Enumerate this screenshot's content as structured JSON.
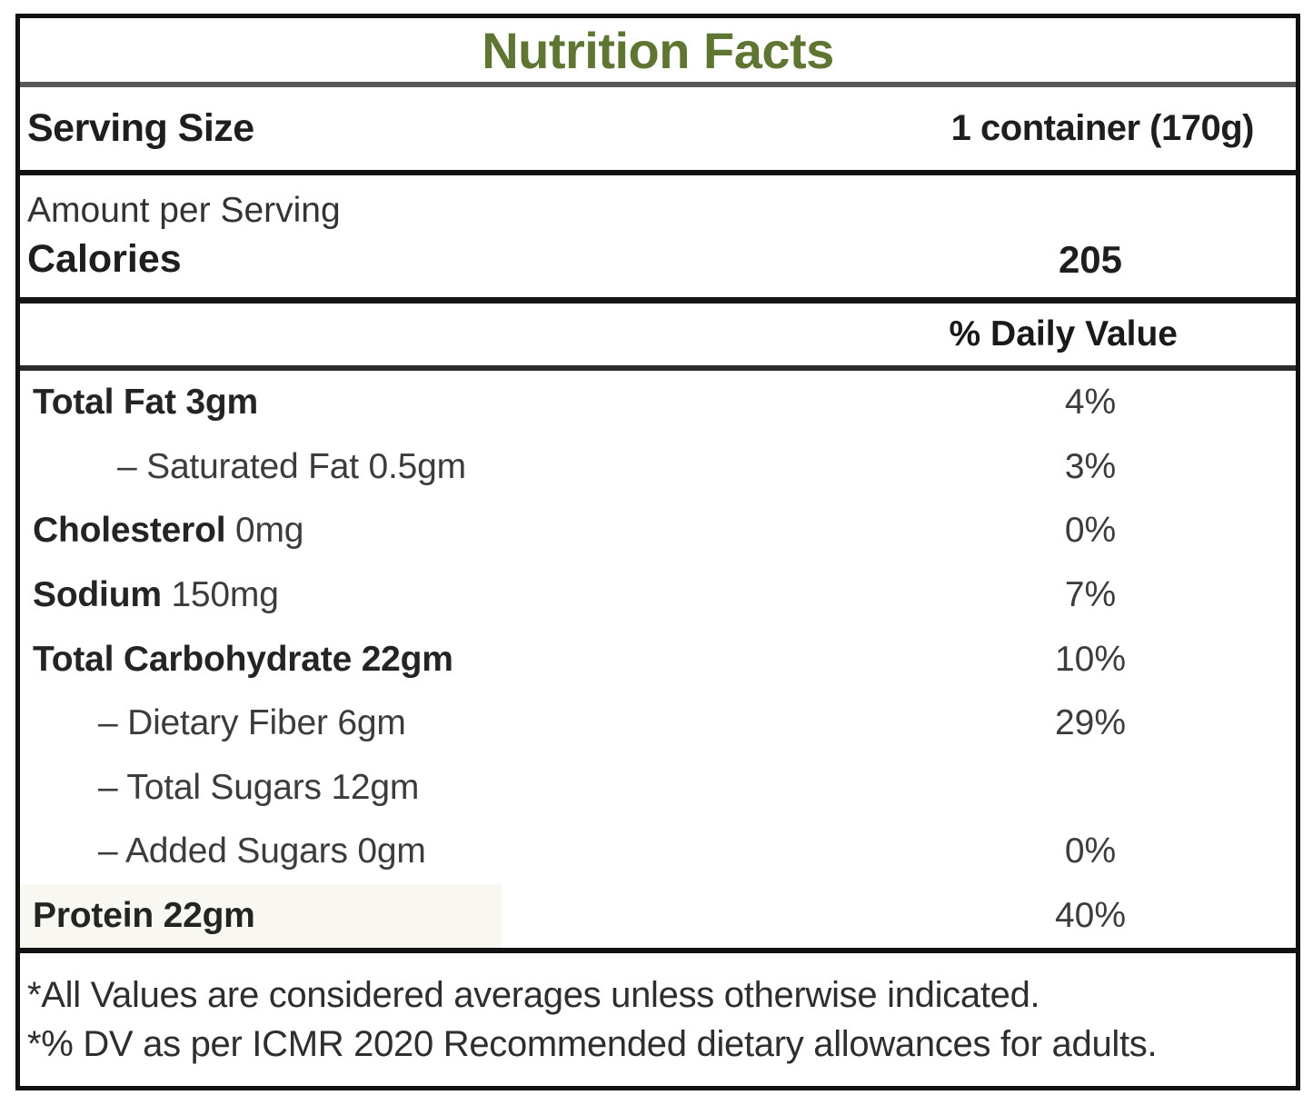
{
  "colors": {
    "title_green": "#5f7532",
    "border_black": "#111111",
    "divider_gray": "#585858"
  },
  "title": "Nutrition Facts",
  "serving": {
    "label": "Serving Size",
    "value": "1 container (170g)"
  },
  "calories": {
    "heading": "Amount per Serving",
    "label": "Calories",
    "value": "205"
  },
  "daily_value_header": "% Daily Value",
  "rows": [
    {
      "bold": "Total Fat 3gm",
      "light": "",
      "dv": "4%",
      "indent": 14,
      "highlight": false
    },
    {
      "bold": "",
      "light": "– Saturated Fat 0.5gm",
      "dv": "3%",
      "indent": 107,
      "highlight": false
    },
    {
      "bold": "Cholesterol",
      "light": "0mg",
      "dv": "0%",
      "indent": 14,
      "highlight": false
    },
    {
      "bold": "Sodium",
      "light": "150mg",
      "dv": "7%",
      "indent": 14,
      "highlight": false
    },
    {
      "bold": "Total Carbohydrate 22gm",
      "light": "",
      "dv": "10%",
      "indent": 14,
      "highlight": false
    },
    {
      "bold": "",
      "light": "– Dietary Fiber 6gm",
      "dv": "29%",
      "indent": 86,
      "highlight": false
    },
    {
      "bold": "",
      "light": "– Total Sugars 12gm",
      "dv": "",
      "indent": 86,
      "highlight": false
    },
    {
      "bold": "",
      "light": "– Added Sugars 0gm",
      "dv": "0%",
      "indent": 86,
      "highlight": false
    },
    {
      "bold": "Protein 22gm",
      "light": "",
      "dv": "40%",
      "indent": 14,
      "highlight": true
    }
  ],
  "footnotes": [
    "*All Values are considered averages unless otherwise indicated.",
    "*% DV as per ICMR 2020 Recommended dietary allowances for adults."
  ]
}
